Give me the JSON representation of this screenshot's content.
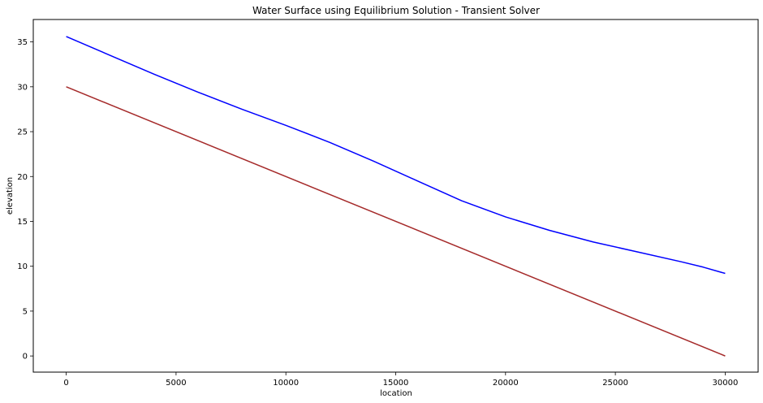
{
  "chart_data": {
    "type": "line",
    "title": "Water Surface using Equilibrium Solution - Transient Solver",
    "xlabel": "location",
    "ylabel": "elevation",
    "xlim": [
      -1500,
      31500
    ],
    "ylim": [
      -1.8,
      37.5
    ],
    "xticks": [
      0,
      5000,
      10000,
      15000,
      20000,
      25000,
      30000
    ],
    "yticks": [
      0,
      5,
      10,
      15,
      20,
      25,
      30,
      35
    ],
    "grid": false,
    "colors": {
      "water_surface": "#0000ff",
      "bed": "#a52a2a"
    },
    "series": [
      {
        "key": "water_surface",
        "x": [
          0,
          2000,
          4000,
          6000,
          8000,
          10000,
          12000,
          14000,
          16000,
          18000,
          20000,
          22000,
          24000,
          26000,
          28000,
          29000,
          30000
        ],
        "y": [
          35.6,
          33.5,
          31.4,
          29.4,
          27.5,
          25.7,
          23.8,
          21.7,
          19.5,
          17.3,
          15.5,
          14.0,
          12.7,
          11.6,
          10.5,
          9.9,
          9.2
        ]
      },
      {
        "key": "bed",
        "x": [
          0,
          30000
        ],
        "y": [
          30.0,
          0.0
        ]
      }
    ]
  }
}
